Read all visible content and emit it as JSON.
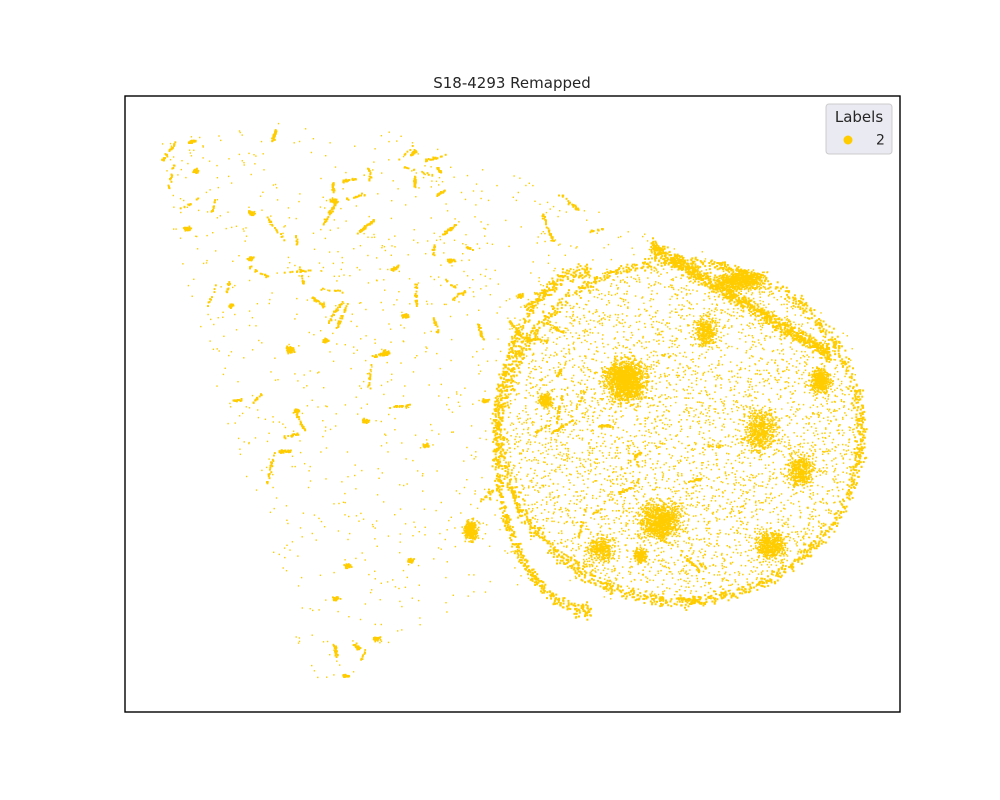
{
  "chart_data": {
    "type": "scatter",
    "title": "S18-4293 Remapped",
    "xlabel": "",
    "ylabel": "",
    "axes_ticks": false,
    "grid": false,
    "legend": {
      "title": "Labels",
      "placement": "top-right",
      "entries": [
        {
          "label": "2",
          "color": "#ffcc00"
        }
      ]
    },
    "series": [
      {
        "name": "2",
        "color": "#ffcc00"
      }
    ]
  }
}
